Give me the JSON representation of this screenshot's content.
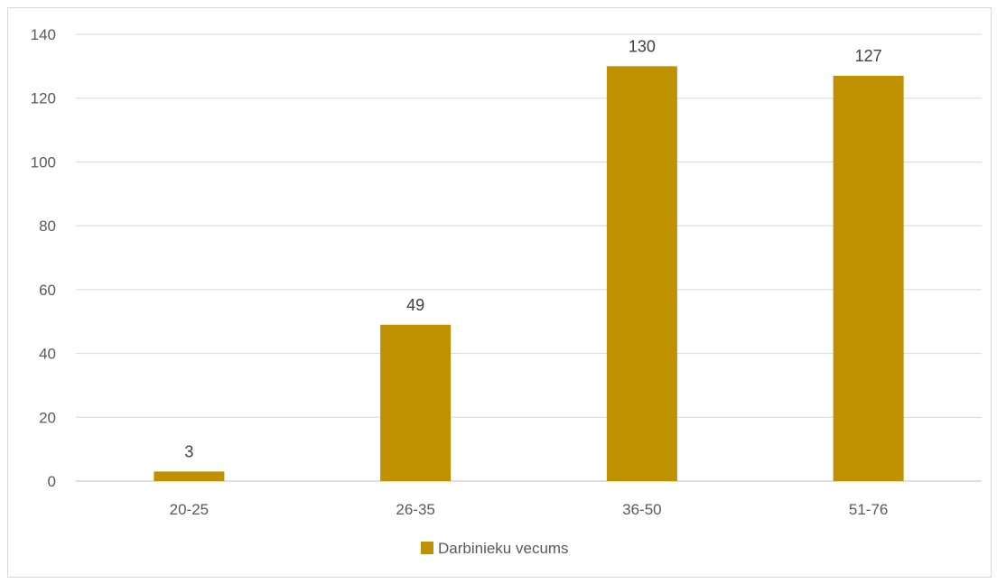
{
  "chart_data": {
    "type": "bar",
    "categories": [
      "20-25",
      "26-35",
      "36-50",
      "51-76"
    ],
    "series": [
      {
        "name": "Darbinieku vecums",
        "values": [
          3,
          49,
          130,
          127
        ],
        "color": "#bf9000"
      }
    ],
    "ylim": [
      0,
      140
    ],
    "yticks": [
      0,
      20,
      40,
      60,
      80,
      100,
      120,
      140
    ],
    "data_labels": true,
    "grid": true,
    "legend": "bottom"
  }
}
